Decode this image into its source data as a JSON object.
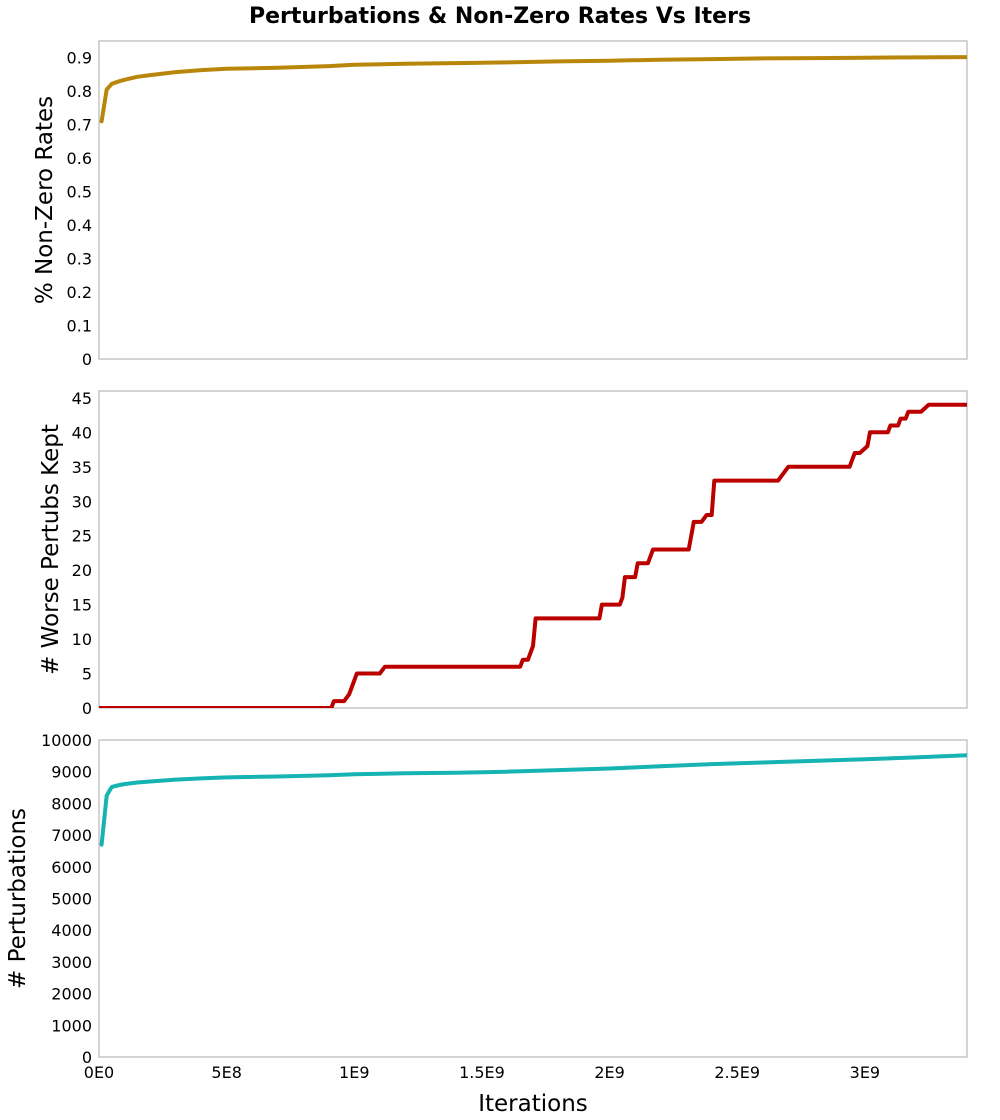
{
  "chart_data": {
    "type": "line",
    "title": "Perturbations & Non-Zero Rates Vs Iters",
    "xlabel": "Iterations",
    "xlim": [
      0,
      3400000000
    ],
    "x_ticks": [
      {
        "value": 0,
        "label": "0E0"
      },
      {
        "value": 500000000,
        "label": "5E8"
      },
      {
        "value": 1000000000,
        "label": "1E9"
      },
      {
        "value": 1500000000,
        "label": "1.5E9"
      },
      {
        "value": 2000000000,
        "label": "2E9"
      },
      {
        "value": 2500000000,
        "label": "2.5E9"
      },
      {
        "value": 3000000000,
        "label": "3E9"
      }
    ],
    "grid": true,
    "panels": [
      {
        "ylabel": "% Non-Zero Rates",
        "ylim": [
          0,
          0.95
        ],
        "y_ticks": [
          {
            "value": 0,
            "label": "0"
          },
          {
            "value": 0.1,
            "label": "0.1"
          },
          {
            "value": 0.2,
            "label": "0.2"
          },
          {
            "value": 0.3,
            "label": "0.3"
          },
          {
            "value": 0.4,
            "label": "0.4"
          },
          {
            "value": 0.5,
            "label": "0.5"
          },
          {
            "value": 0.6,
            "label": "0.6"
          },
          {
            "value": 0.7,
            "label": "0.7"
          },
          {
            "value": 0.8,
            "label": "0.8"
          },
          {
            "value": 0.9,
            "label": "0.9"
          }
        ],
        "color": "#b8860b",
        "x": [
          10000000,
          30000000,
          50000000,
          80000000,
          100000000,
          150000000,
          200000000,
          300000000,
          400000000,
          500000000,
          700000000,
          900000000,
          1000000000,
          1200000000,
          1400000000,
          1600000000,
          1800000000,
          2000000000,
          2200000000,
          2400000000,
          2600000000,
          2800000000,
          3000000000,
          3200000000,
          3400000000
        ],
        "y": [
          0.71,
          0.805,
          0.822,
          0.83,
          0.834,
          0.843,
          0.848,
          0.857,
          0.863,
          0.867,
          0.87,
          0.875,
          0.879,
          0.882,
          0.884,
          0.886,
          0.889,
          0.891,
          0.894,
          0.896,
          0.898,
          0.899,
          0.9,
          0.901,
          0.902
        ]
      },
      {
        "ylabel": "# Worse Pertubs Kept",
        "ylim": [
          0,
          46
        ],
        "y_ticks": [
          {
            "value": 0,
            "label": "0"
          },
          {
            "value": 5,
            "label": "5"
          },
          {
            "value": 10,
            "label": "10"
          },
          {
            "value": 15,
            "label": "15"
          },
          {
            "value": 20,
            "label": "20"
          },
          {
            "value": 25,
            "label": "25"
          },
          {
            "value": 30,
            "label": "30"
          },
          {
            "value": 35,
            "label": "35"
          },
          {
            "value": 40,
            "label": "40"
          },
          {
            "value": 45,
            "label": "45"
          }
        ],
        "color": "#bb0000",
        "x": [
          0,
          910000000,
          920000000,
          960000000,
          980000000,
          1000000000,
          1010000000,
          1040000000,
          1100000000,
          1120000000,
          1130000000,
          1650000000,
          1660000000,
          1680000000,
          1700000000,
          1710000000,
          1960000000,
          1970000000,
          1980000000,
          2040000000,
          2050000000,
          2060000000,
          2080000000,
          2100000000,
          2110000000,
          2150000000,
          2170000000,
          2250000000,
          2310000000,
          2330000000,
          2360000000,
          2380000000,
          2400000000,
          2410000000,
          2420000000,
          2660000000,
          2700000000,
          2720000000,
          2940000000,
          2960000000,
          2980000000,
          3010000000,
          3020000000,
          3040000000,
          3090000000,
          3100000000,
          3130000000,
          3140000000,
          3160000000,
          3170000000,
          3210000000,
          3220000000,
          3250000000,
          3400000000
        ],
        "y": [
          0,
          0,
          1,
          1,
          2,
          4,
          5,
          5,
          5,
          6,
          6,
          6,
          7,
          7,
          9,
          13,
          13,
          15,
          15,
          15,
          16,
          19,
          19,
          19,
          21,
          21,
          23,
          23,
          23,
          27,
          27,
          28,
          28,
          33,
          33,
          33,
          35,
          35,
          35,
          37,
          37,
          38,
          40,
          40,
          40,
          41,
          41,
          42,
          42,
          43,
          43,
          43,
          44,
          44
        ]
      },
      {
        "ylabel": "# Perturbations",
        "ylim": [
          0,
          10000
        ],
        "y_ticks": [
          {
            "value": 0,
            "label": "0"
          },
          {
            "value": 1000,
            "label": "1000"
          },
          {
            "value": 2000,
            "label": "2000"
          },
          {
            "value": 3000,
            "label": "3000"
          },
          {
            "value": 4000,
            "label": "4000"
          },
          {
            "value": 5000,
            "label": "5000"
          },
          {
            "value": 6000,
            "label": "6000"
          },
          {
            "value": 7000,
            "label": "7000"
          },
          {
            "value": 8000,
            "label": "8000"
          },
          {
            "value": 9000,
            "label": "9000"
          },
          {
            "value": 10000,
            "label": "10000"
          }
        ],
        "color": "#16b3b3",
        "x": [
          10000000,
          30000000,
          50000000,
          80000000,
          100000000,
          150000000,
          200000000,
          300000000,
          400000000,
          500000000,
          700000000,
          900000000,
          1000000000,
          1200000000,
          1400000000,
          1600000000,
          1800000000,
          2000000000,
          2200000000,
          2400000000,
          2600000000,
          2800000000,
          3000000000,
          3200000000,
          3400000000
        ],
        "y": [
          6700,
          8250,
          8520,
          8580,
          8610,
          8660,
          8690,
          8750,
          8790,
          8820,
          8850,
          8890,
          8920,
          8950,
          8970,
          9000,
          9050,
          9100,
          9170,
          9240,
          9290,
          9340,
          9390,
          9450,
          9520
        ]
      }
    ]
  }
}
